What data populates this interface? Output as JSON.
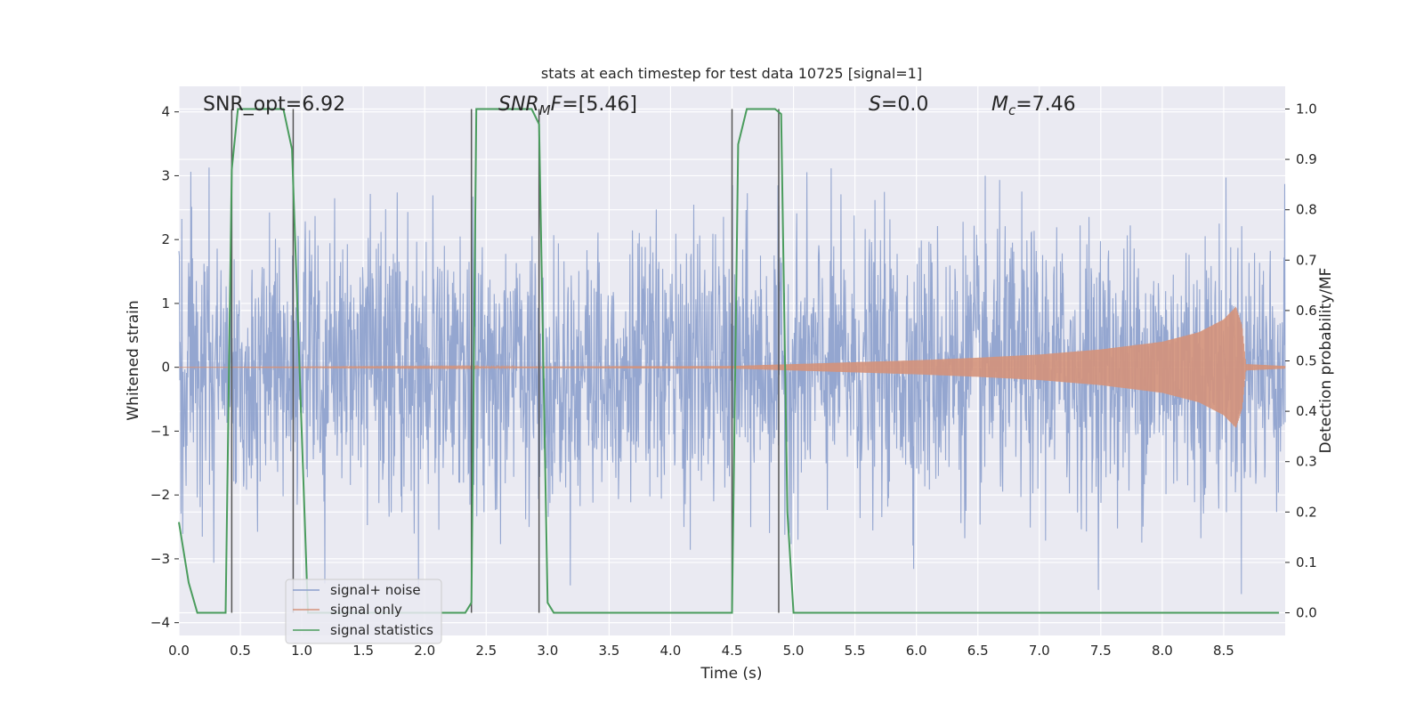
{
  "chart_data": {
    "type": "line",
    "title": "stats at each timestep for test data 10725 [signal=1]",
    "xlabel": "Time (s)",
    "ylabel": "Whitened strain",
    "y2label": "Detection probability/MF",
    "xlim": [
      0.0,
      9.0
    ],
    "ylim": [
      -4.2,
      4.4
    ],
    "y2lim": [
      -0.045,
      1.045
    ],
    "x_ticks": [
      "0.0",
      "0.5",
      "1.0",
      "1.5",
      "2.0",
      "2.5",
      "3.0",
      "3.5",
      "4.0",
      "4.5",
      "5.0",
      "5.5",
      "6.0",
      "6.5",
      "7.0",
      "7.5",
      "8.0",
      "8.5"
    ],
    "y_ticks": [
      "4",
      "3",
      "2",
      "1",
      "0",
      "−1",
      "−2",
      "−3",
      "−4"
    ],
    "y2_ticks": [
      "1.0",
      "0.9",
      "0.8",
      "0.7",
      "0.6",
      "0.5",
      "0.4",
      "0.3",
      "0.2",
      "0.1",
      "0.0"
    ],
    "grid": true,
    "legend_position": "lower-left",
    "annotations": {
      "snr_opt": "SNR_opt=6.92",
      "snr_mf_italic": "SNR",
      "snr_mf_sub": "M",
      "snr_mf_italic2": "F",
      "snr_mf_value": "=[5.46]",
      "s_italic": "S",
      "s_value": "=0.0",
      "mc_italic": "M",
      "mc_sub": "c",
      "mc_value": "=7.46"
    },
    "series": [
      {
        "name": "signal+ noise",
        "color": "#8b9fcc",
        "description_values": "noisy whitened strain, roughly within -3.6 to 3.5"
      },
      {
        "name": "signal only",
        "color": "#d4927a",
        "x": [
          0.0,
          4.5,
          5.0,
          5.5,
          6.0,
          6.5,
          7.0,
          7.5,
          8.0,
          8.3,
          8.5,
          8.6,
          8.65,
          8.68,
          9.0
        ],
        "amplitude": [
          0.0,
          0.02,
          0.05,
          0.08,
          0.11,
          0.15,
          0.2,
          0.28,
          0.4,
          0.55,
          0.75,
          0.95,
          0.65,
          0.05,
          0.02
        ]
      },
      {
        "name": "signal statistics",
        "color": "#4a9c5d",
        "axis": "right",
        "x": [
          0.0,
          0.08,
          0.15,
          0.38,
          0.43,
          0.48,
          0.85,
          0.92,
          1.05,
          2.33,
          2.38,
          2.42,
          2.87,
          2.93,
          3.0,
          3.05,
          4.5,
          4.55,
          4.62,
          4.85,
          4.9,
          4.95,
          5.0,
          8.95
        ],
        "values": [
          0.18,
          0.06,
          0.0,
          0.0,
          0.88,
          1.0,
          1.0,
          0.92,
          0.0,
          0.0,
          0.02,
          1.0,
          1.0,
          0.97,
          0.02,
          0.0,
          0.0,
          0.93,
          1.0,
          1.0,
          0.99,
          0.2,
          0.0,
          0.0
        ]
      }
    ],
    "vertical_markers_x": [
      0.43,
      0.93,
      2.38,
      2.93,
      4.5,
      4.88
    ]
  }
}
